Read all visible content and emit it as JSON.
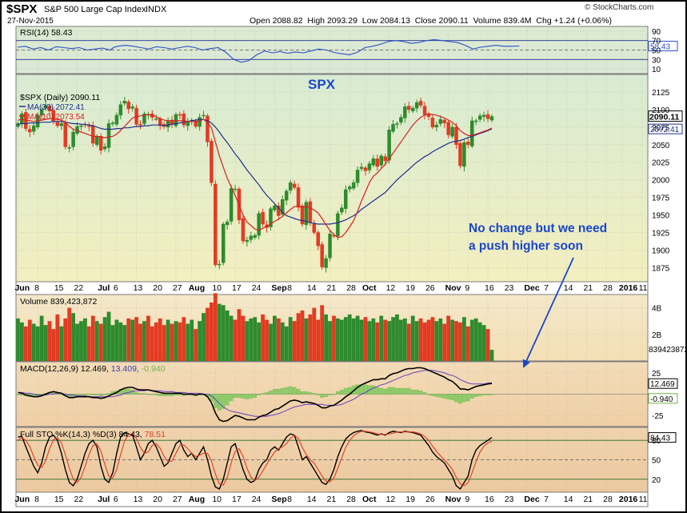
{
  "header": {
    "symbol": "$SPX",
    "name": "S&P 500 Large Cap Index",
    "exchange": "INDX",
    "date": "27-Nov-2015",
    "watermark": "© StockCharts.com",
    "open_label": "Open",
    "open": "2088.82",
    "high_label": "High",
    "high": "2093.29",
    "low_label": "Low",
    "low": "2084.13",
    "close_label": "Close",
    "close": "2090.11",
    "volume_label": "Volume",
    "volume": "839.4M",
    "chg_label": "Chg",
    "chg": "+1.24 (+0.06%)"
  },
  "annotations": {
    "spx_label": "SPX",
    "note_line1": "No change but we need",
    "note_line2": "a push higher soon"
  },
  "colors": {
    "up": "#2e8b2e",
    "down": "#e23b22",
    "rsi_line": "#2b4fc8",
    "ma30": "#1f2f8f",
    "ma10": "#d62020",
    "macd_line": "#000000",
    "signal_line": "#6a3fc0",
    "histogram": "#8fcc6a",
    "annotation": "#1a47c8"
  },
  "chart_data": [
    {
      "id": "rsi",
      "type": "line",
      "legend": "RSI(14) 58.43",
      "value_tag": "58.43",
      "ylim": [
        0,
        100
      ],
      "yticks": [
        "90",
        "70",
        "50",
        "30",
        "10"
      ],
      "x": [
        0,
        10,
        20,
        30,
        40,
        50,
        60,
        70,
        80,
        90,
        100,
        110,
        120,
        125,
        130,
        140,
        150,
        160,
        170,
        180,
        190,
        200,
        210,
        220,
        230,
        240,
        250,
        260,
        270,
        280,
        290,
        300,
        310,
        320,
        330,
        340,
        350,
        360,
        370,
        380,
        390,
        400,
        410,
        420,
        430,
        440,
        450,
        460,
        470,
        480,
        490,
        500,
        510,
        520,
        530,
        540,
        550,
        560,
        570,
        580,
        590,
        600,
        610,
        620,
        630,
        640,
        650
      ],
      "values": [
        56,
        58,
        52,
        55,
        50,
        57,
        55,
        53,
        55,
        50,
        52,
        54,
        50,
        56,
        58,
        60,
        58,
        55,
        52,
        57,
        55,
        52,
        55,
        58,
        55,
        50,
        53,
        55,
        45,
        30,
        24,
        28,
        40,
        48,
        44,
        47,
        43,
        46,
        44,
        48,
        52,
        50,
        45,
        42,
        40,
        45,
        55,
        58,
        62,
        68,
        70,
        68,
        64,
        66,
        70,
        72,
        70,
        68,
        66,
        60,
        52,
        56,
        58,
        60,
        58,
        58,
        58.43
      ]
    },
    {
      "id": "price",
      "type": "candlestick",
      "legend_title": "$SPX (Daily) 2090.11",
      "ma30_legend": "MA(30) 2072.41",
      "ma10_legend": "MA(10) 2073.54",
      "price_tag": "2090.11",
      "ma30_tag": "2072.41",
      "ylim": [
        1855,
        2150
      ],
      "yticks": [
        "2125",
        "2100",
        "2075",
        "2050",
        "2025",
        "2000",
        "1975",
        "1950",
        "1925",
        "1900",
        "1875"
      ],
      "closes": [
        2080,
        2094,
        2073,
        2068,
        2077,
        2092,
        2100,
        2106,
        2098,
        2084,
        2077,
        2080,
        2047,
        2046,
        2068,
        2076,
        2077,
        2078,
        2076,
        2052,
        2062,
        2042,
        2047,
        2080,
        2081,
        2092,
        2107,
        2112,
        2101,
        2104,
        2079,
        2078,
        2094,
        2093,
        2089,
        2087,
        2077,
        2076,
        2084,
        2079,
        2093,
        2092,
        2078,
        2082,
        2085,
        2076,
        2089,
        2092,
        2054,
        1996,
        1879,
        1880,
        1937,
        1940,
        1988,
        1987,
        1943,
        1913,
        1914,
        1920,
        1921,
        1952,
        1937,
        1932,
        1959,
        1963,
        1949,
        1972,
        1984,
        1996,
        1989,
        1961,
        1937,
        1968,
        1939,
        1925,
        1906,
        1876,
        1888,
        1923,
        1920,
        1952,
        1960,
        1986,
        1990,
        1996,
        2014,
        2018,
        2013,
        2023,
        2030,
        2019,
        2034,
        2027,
        2071,
        2079,
        2080,
        2089,
        2104,
        2100,
        2102,
        2110,
        2106,
        2093,
        2090,
        2075,
        2078,
        2086,
        2081,
        2064,
        2075,
        2050,
        2020,
        2053,
        2050,
        2084,
        2084,
        2091,
        2092,
        2087,
        2090.11
      ],
      "ma30": [
        2079,
        2080,
        2080,
        2081,
        2081,
        2081,
        2082,
        2082,
        2082,
        2083,
        2083,
        2083,
        2082,
        2081,
        2080,
        2080,
        2079,
        2079,
        2078,
        2077,
        2075,
        2073,
        2072,
        2072,
        2072,
        2073,
        2073,
        2074,
        2074,
        2075,
        2076,
        2076,
        2077,
        2077,
        2078,
        2078,
        2078,
        2077,
        2078,
        2079,
        2080,
        2081,
        2082,
        2083,
        2084,
        2085,
        2086,
        2086,
        2084,
        2081,
        2075,
        2068,
        2060,
        2053,
        2045,
        2037,
        2030,
        2022,
        2014,
        2007,
        2000,
        1993,
        1985,
        1978,
        1972,
        1966,
        1960,
        1954,
        1949,
        1947,
        1945,
        1943,
        1942,
        1941,
        1939,
        1938,
        1937,
        1937,
        1937,
        1937,
        1938,
        1939,
        1941,
        1943,
        1946,
        1949,
        1953,
        1958,
        1962,
        1966,
        1970,
        1974,
        1978,
        1982,
        1988,
        1994,
        2000,
        2005,
        2010,
        2015,
        2020,
        2025,
        2029,
        2033,
        2036,
        2040,
        2043,
        2046,
        2049,
        2052,
        2054,
        2055,
        2056,
        2058,
        2060,
        2062,
        2064,
        2066,
        2068,
        2070,
        2072.41
      ],
      "ma10": [
        2085,
        2086,
        2085,
        2084,
        2083,
        2084,
        2085,
        2086,
        2087,
        2087,
        2086,
        2085,
        2082,
        2076,
        2072,
        2070,
        2068,
        2066,
        2064,
        2062,
        2062,
        2061,
        2060,
        2061,
        2062,
        2065,
        2070,
        2076,
        2082,
        2088,
        2090,
        2091,
        2092,
        2093,
        2092,
        2090,
        2087,
        2085,
        2084,
        2084,
        2084,
        2084,
        2084,
        2083,
        2083,
        2083,
        2084,
        2086,
        2082,
        2074,
        2054,
        2034,
        2018,
        2002,
        1990,
        1978,
        1964,
        1950,
        1940,
        1935,
        1930,
        1928,
        1931,
        1934,
        1937,
        1941,
        1944,
        1948,
        1953,
        1958,
        1962,
        1962,
        1961,
        1962,
        1960,
        1957,
        1953,
        1945,
        1936,
        1928,
        1922,
        1918,
        1919,
        1925,
        1933,
        1942,
        1955,
        1970,
        1983,
        1996,
        2005,
        2010,
        2016,
        2022,
        2030,
        2038,
        2046,
        2054,
        2062,
        2070,
        2078,
        2084,
        2089,
        2092,
        2094,
        2093,
        2092,
        2090,
        2088,
        2085,
        2082,
        2077,
        2070,
        2066,
        2063,
        2063,
        2065,
        2067,
        2069,
        2071,
        2073.54
      ]
    },
    {
      "id": "volume",
      "type": "bar",
      "legend": "Volume 839,423,872",
      "value_tag": "839423872",
      "unit": "billion shares",
      "ylim": [
        0,
        5
      ],
      "yticks": [
        "4B",
        "2B"
      ],
      "values": [
        3.2,
        2.9,
        2.6,
        3.1,
        2.8,
        2.6,
        3.4,
        2.7,
        3.0,
        2.4,
        3.5,
        2.6,
        3.2,
        4.0,
        3.6,
        2.8,
        3.0,
        3.2,
        2.6,
        3.4,
        3.0,
        2.8,
        3.3,
        3.7,
        2.7,
        3.1,
        2.9,
        2.7,
        3.2,
        3.1,
        3.3,
        2.8,
        3.0,
        3.4,
        2.6,
        2.9,
        3.2,
        2.7,
        3.1,
        2.8,
        3.0,
        2.9,
        3.3,
        2.8,
        3.1,
        2.4,
        3.0,
        3.6,
        4.0,
        4.4,
        5.1,
        4.3,
        4.2,
        3.8,
        3.4,
        3.1,
        3.9,
        3.4,
        3.0,
        3.2,
        3.3,
        2.9,
        3.5,
        3.1,
        2.8,
        3.4,
        3.2,
        2.9,
        2.6,
        3.3,
        3.0,
        3.6,
        3.8,
        3.2,
        3.5,
        4.0,
        3.1,
        4.2,
        3.5,
        3.0,
        3.4,
        3.2,
        3.1,
        3.3,
        3.5,
        3.2,
        3.4,
        3.1,
        3.3,
        3.0,
        3.2,
        2.9,
        3.4,
        3.1,
        3.0,
        3.3,
        3.5,
        3.1,
        3.2,
        2.8,
        3.4,
        3.0,
        3.2,
        2.9,
        3.1,
        3.3,
        3.0,
        3.2,
        2.8,
        3.4,
        3.1,
        3.0,
        2.9,
        3.3,
        2.6,
        3.1,
        3.2,
        2.9,
        2.7,
        2.4,
        0.84
      ]
    },
    {
      "id": "macd",
      "type": "line",
      "legend_title": "MACD(12,26,9)",
      "macd_value": "12.469",
      "signal_value": "13.409",
      "hist_value": "-0.940",
      "macd_tag": "12.469",
      "hist_tag": "-0.940",
      "ylim": [
        -38,
        38
      ],
      "yticks": [
        "25",
        "-25"
      ],
      "macd": [
        2,
        1,
        -1,
        -2,
        -3,
        -3,
        -2,
        0,
        2,
        3,
        2,
        1,
        -2,
        -4,
        -4,
        -3,
        -3,
        -3,
        -3,
        -4,
        -4,
        -5,
        -4,
        -2,
        0,
        2,
        5,
        7,
        8,
        8,
        6,
        5,
        5,
        5,
        4,
        3,
        2,
        1,
        1,
        1,
        1,
        1,
        0,
        0,
        0,
        -1,
        0,
        0,
        -3,
        -10,
        -22,
        -30,
        -32,
        -31,
        -28,
        -25,
        -26,
        -28,
        -30,
        -30,
        -30,
        -27,
        -25,
        -24,
        -21,
        -18,
        -17,
        -14,
        -11,
        -8,
        -7,
        -8,
        -10,
        -9,
        -10,
        -11,
        -13,
        -16,
        -16,
        -14,
        -13,
        -10,
        -7,
        -3,
        0,
        4,
        8,
        11,
        13,
        15,
        17,
        17,
        18,
        18,
        22,
        24,
        25,
        27,
        29,
        30,
        30,
        31,
        31,
        30,
        28,
        26,
        24,
        22,
        20,
        17,
        15,
        11,
        6,
        6,
        5,
        7,
        9,
        10,
        11,
        12,
        12.469
      ],
      "signal": [
        2,
        2,
        1,
        1,
        0,
        -1,
        -1,
        -1,
        0,
        0,
        1,
        1,
        0,
        -1,
        -1,
        -2,
        -2,
        -2,
        -3,
        -3,
        -3,
        -3,
        -3,
        -3,
        -3,
        -2,
        -1,
        1,
        2,
        3,
        4,
        4,
        4,
        5,
        4,
        4,
        4,
        3,
        3,
        3,
        2,
        2,
        2,
        1,
        1,
        1,
        1,
        0,
        0,
        -2,
        -6,
        -11,
        -15,
        -18,
        -20,
        -21,
        -22,
        -23,
        -24,
        -25,
        -26,
        -26,
        -26,
        -26,
        -25,
        -24,
        -23,
        -21,
        -19,
        -17,
        -15,
        -14,
        -13,
        -12,
        -12,
        -12,
        -12,
        -12,
        -13,
        -13,
        -13,
        -13,
        -12,
        -10,
        -8,
        -6,
        -3,
        0,
        2,
        5,
        7,
        9,
        11,
        12,
        14,
        16,
        18,
        20,
        22,
        23,
        25,
        26,
        27,
        28,
        28,
        28,
        27,
        26,
        25,
        23,
        22,
        20,
        17,
        15,
        13,
        12,
        12,
        12,
        12,
        13,
        13.409
      ]
    },
    {
      "id": "sto",
      "type": "line",
      "legend_title": "Full STO %K(14,3) %D(3)",
      "k_value": "84.43",
      "d_value": "78.51",
      "k_tag": "84.43",
      "ylim": [
        0,
        100
      ],
      "yticks": [
        "80",
        "50",
        "20"
      ],
      "k": [
        85,
        86,
        70,
        55,
        40,
        30,
        45,
        70,
        85,
        88,
        80,
        60,
        35,
        15,
        10,
        20,
        40,
        60,
        75,
        80,
        70,
        40,
        20,
        15,
        30,
        60,
        85,
        92,
        90,
        88,
        70,
        50,
        60,
        75,
        80,
        70,
        55,
        40,
        45,
        60,
        75,
        80,
        65,
        55,
        60,
        50,
        60,
        70,
        50,
        25,
        8,
        5,
        20,
        45,
        70,
        75,
        55,
        35,
        20,
        15,
        18,
        35,
        45,
        50,
        65,
        70,
        65,
        75,
        85,
        90,
        88,
        70,
        50,
        55,
        45,
        35,
        25,
        15,
        12,
        20,
        35,
        55,
        70,
        82,
        88,
        92,
        94,
        95,
        93,
        92,
        90,
        88,
        90,
        88,
        92,
        94,
        93,
        92,
        94,
        93,
        92,
        90,
        88,
        80,
        72,
        62,
        55,
        50,
        45,
        35,
        25,
        10,
        5,
        15,
        25,
        50,
        65,
        72,
        76,
        80,
        84.43
      ],
      "d": [
        80,
        84,
        80,
        70,
        55,
        42,
        38,
        48,
        67,
        81,
        84,
        76,
        58,
        37,
        20,
        15,
        23,
        40,
        58,
        72,
        75,
        63,
        43,
        25,
        22,
        35,
        58,
        79,
        89,
        90,
        83,
        69,
        60,
        62,
        72,
        75,
        68,
        55,
        47,
        48,
        60,
        72,
        73,
        67,
        60,
        55,
        57,
        60,
        60,
        48,
        28,
        13,
        11,
        23,
        45,
        63,
        67,
        55,
        37,
        23,
        18,
        23,
        33,
        43,
        53,
        62,
        67,
        70,
        75,
        83,
        88,
        83,
        69,
        58,
        50,
        45,
        35,
        25,
        17,
        16,
        22,
        37,
        53,
        69,
        80,
        87,
        91,
        94,
        94,
        93,
        92,
        90,
        89,
        89,
        90,
        91,
        93,
        93,
        93,
        93,
        93,
        92,
        90,
        86,
        80,
        71,
        63,
        56,
        50,
        43,
        35,
        23,
        13,
        10,
        15,
        30,
        47,
        62,
        71,
        76,
        78.51
      ]
    }
  ],
  "x_axis": {
    "labels": [
      "Jun",
      "8",
      "15",
      "22",
      "Jul",
      "6",
      "13",
      "20",
      "27",
      "Aug",
      "10",
      "17",
      "24",
      "Sep",
      "8",
      "14",
      "21",
      "28",
      "Oct",
      "12",
      "19",
      "26",
      "Nov",
      "9",
      "16",
      "23",
      "Dec",
      "7",
      "14",
      "21",
      "28",
      "2016",
      "11"
    ],
    "bold": [
      true,
      false,
      false,
      false,
      true,
      false,
      false,
      false,
      false,
      true,
      false,
      false,
      false,
      true,
      false,
      false,
      false,
      false,
      true,
      false,
      false,
      false,
      true,
      false,
      false,
      false,
      true,
      false,
      false,
      false,
      false,
      true,
      false
    ],
    "positions": [
      0,
      5,
      10,
      15,
      21,
      25,
      30,
      35,
      40,
      44,
      50,
      55,
      60,
      65,
      69,
      74,
      79,
      84,
      88,
      94,
      99,
      104,
      109,
      114,
      119,
      124,
      129,
      134,
      139,
      144,
      149,
      153,
      158
    ],
    "last_bar": 121,
    "total_slots": 160
  }
}
